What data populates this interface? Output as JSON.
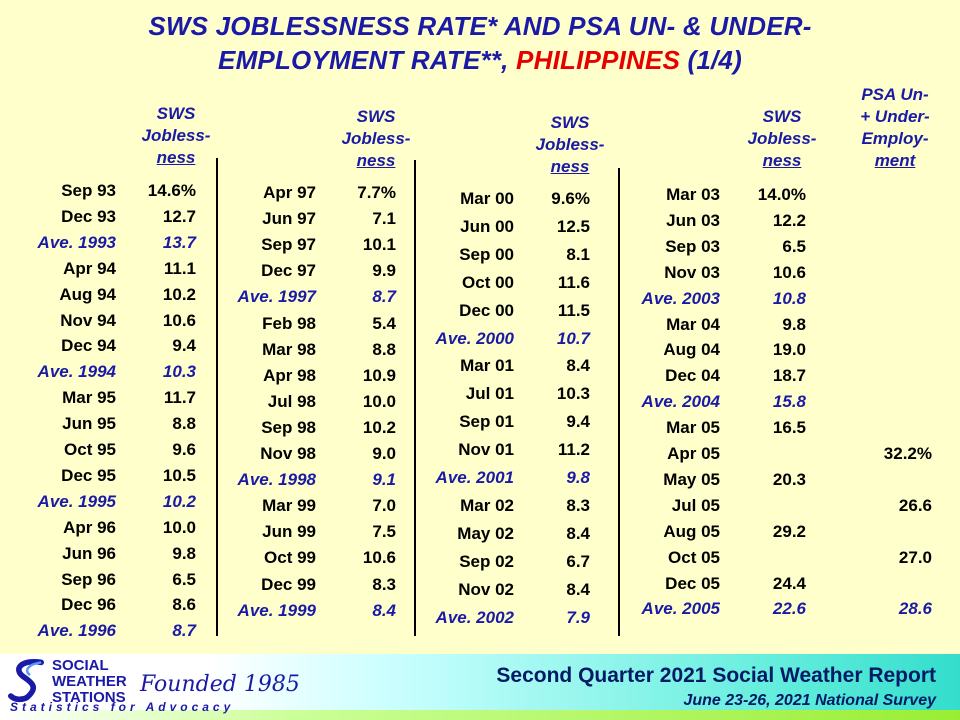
{
  "title": {
    "line1": "SWS JOBLESSNESS RATE* AND PSA UN- & UNDER-",
    "line2_prefix": "EMPLOYMENT RATE**, ",
    "line2_red": "PHILIPPINES",
    "line2_suffix": " (1/4)"
  },
  "headers": {
    "sws_1": "SWS",
    "sws_2": "Jobless-",
    "sws_3": "ness",
    "psa_1": "PSA Un-",
    "psa_2": "+ Under-",
    "psa_3": "Employ-",
    "psa_4": "ment"
  },
  "columns": [
    {
      "rows": [
        {
          "label": "Sep 93",
          "value": "14.6%",
          "ave": false
        },
        {
          "label": "Dec 93",
          "value": "12.7",
          "ave": false
        },
        {
          "label": "Ave. 1993",
          "value": "13.7",
          "ave": true
        },
        {
          "label": "Apr 94",
          "value": "11.1",
          "ave": false
        },
        {
          "label": "Aug 94",
          "value": "10.2",
          "ave": false
        },
        {
          "label": "Nov 94",
          "value": "10.6",
          "ave": false
        },
        {
          "label": "Dec 94",
          "value": "9.4",
          "ave": false
        },
        {
          "label": "Ave. 1994",
          "value": "10.3",
          "ave": true
        },
        {
          "label": "Mar 95",
          "value": "11.7",
          "ave": false
        },
        {
          "label": "Jun 95",
          "value": "8.8",
          "ave": false
        },
        {
          "label": "Oct 95",
          "value": "9.6",
          "ave": false
        },
        {
          "label": "Dec 95",
          "value": "10.5",
          "ave": false
        },
        {
          "label": "Ave. 1995",
          "value": "10.2",
          "ave": true
        },
        {
          "label": "Apr 96",
          "value": "10.0",
          "ave": false
        },
        {
          "label": "Jun 96",
          "value": "9.8",
          "ave": false
        },
        {
          "label": "Sep 96",
          "value": "6.5",
          "ave": false
        },
        {
          "label": "Dec 96",
          "value": "8.6",
          "ave": false
        },
        {
          "label": "Ave. 1996",
          "value": "8.7",
          "ave": true
        }
      ]
    },
    {
      "rows": [
        {
          "label": "Apr 97",
          "value": "7.7%",
          "ave": false
        },
        {
          "label": "Jun 97",
          "value": "7.1",
          "ave": false
        },
        {
          "label": "Sep 97",
          "value": "10.1",
          "ave": false
        },
        {
          "label": "Dec 97",
          "value": "9.9",
          "ave": false
        },
        {
          "label": "Ave. 1997",
          "value": "8.7",
          "ave": true
        },
        {
          "label": "Feb 98",
          "value": "5.4",
          "ave": false
        },
        {
          "label": "Mar 98",
          "value": "8.8",
          "ave": false
        },
        {
          "label": "Apr 98",
          "value": "10.9",
          "ave": false
        },
        {
          "label": "Jul 98",
          "value": "10.0",
          "ave": false
        },
        {
          "label": "Sep 98",
          "value": "10.2",
          "ave": false
        },
        {
          "label": "Nov 98",
          "value": "9.0",
          "ave": false
        },
        {
          "label": "Ave. 1998",
          "value": "9.1",
          "ave": true
        },
        {
          "label": "Mar 99",
          "value": "7.0",
          "ave": false
        },
        {
          "label": "Jun 99",
          "value": "7.5",
          "ave": false
        },
        {
          "label": "Oct 99",
          "value": "10.6",
          "ave": false
        },
        {
          "label": "Dec 99",
          "value": "8.3",
          "ave": false
        },
        {
          "label": "Ave. 1999",
          "value": "8.4",
          "ave": true
        }
      ]
    },
    {
      "rows": [
        {
          "label": "Mar 00",
          "value": "9.6%",
          "ave": false
        },
        {
          "label": "Jun 00",
          "value": "12.5",
          "ave": false
        },
        {
          "label": "Sep 00",
          "value": "8.1",
          "ave": false
        },
        {
          "label": "Oct 00",
          "value": "11.6",
          "ave": false
        },
        {
          "label": "Dec 00",
          "value": "11.5",
          "ave": false
        },
        {
          "label": "Ave. 2000",
          "value": "10.7",
          "ave": true
        },
        {
          "label": "Mar 01",
          "value": "8.4",
          "ave": false
        },
        {
          "label": "Jul 01",
          "value": "10.3",
          "ave": false
        },
        {
          "label": "Sep 01",
          "value": "9.4",
          "ave": false
        },
        {
          "label": "Nov 01",
          "value": "11.2",
          "ave": false
        },
        {
          "label": "Ave. 2001",
          "value": "9.8",
          "ave": true
        },
        {
          "label": "Mar 02",
          "value": "8.3",
          "ave": false
        },
        {
          "label": "May 02",
          "value": "8.4",
          "ave": false
        },
        {
          "label": "Sep 02",
          "value": "6.7",
          "ave": false
        },
        {
          "label": "Nov 02",
          "value": "8.4",
          "ave": false
        },
        {
          "label": "Ave. 2002",
          "value": "7.9",
          "ave": true
        }
      ]
    },
    {
      "rows": [
        {
          "label": "Mar 03",
          "value": "14.0%",
          "psa": "",
          "ave": false
        },
        {
          "label": "Jun 03",
          "value": "12.2",
          "psa": "",
          "ave": false
        },
        {
          "label": "Sep 03",
          "value": "6.5",
          "psa": "",
          "ave": false
        },
        {
          "label": "Nov 03",
          "value": "10.6",
          "psa": "",
          "ave": false
        },
        {
          "label": "Ave. 2003",
          "value": "10.8",
          "psa": "",
          "ave": true
        },
        {
          "label": "Mar 04",
          "value": "9.8",
          "psa": "",
          "ave": false
        },
        {
          "label": "Aug 04",
          "value": "19.0",
          "psa": "",
          "ave": false
        },
        {
          "label": "Dec 04",
          "value": "18.7",
          "psa": "",
          "ave": false
        },
        {
          "label": "Ave. 2004",
          "value": "15.8",
          "psa": "",
          "ave": true
        },
        {
          "label": "Mar 05",
          "value": "16.5",
          "psa": "",
          "ave": false
        },
        {
          "label": "Apr 05",
          "value": "",
          "psa": "32.2%",
          "ave": false
        },
        {
          "label": "May 05",
          "value": "20.3",
          "psa": "",
          "ave": false
        },
        {
          "label": "Jul 05",
          "value": "",
          "psa": "26.6",
          "ave": false
        },
        {
          "label": "Aug 05",
          "value": "29.2",
          "psa": "",
          "ave": false
        },
        {
          "label": "Oct 05",
          "value": "",
          "psa": "27.0",
          "ave": false
        },
        {
          "label": "Dec 05",
          "value": "24.4",
          "psa": "",
          "ave": false
        },
        {
          "label": "Ave. 2005",
          "value": "22.6",
          "psa": "28.6",
          "ave": true
        }
      ]
    }
  ],
  "footer": {
    "org_line1": "SOCIAL",
    "org_line2": "WEATHER",
    "org_line3": "STATIONS",
    "founded": "Founded 1985",
    "tagline": "Statistics for Advocacy",
    "report": "Second Quarter 2021 Social Weather Report",
    "survey": "June 23-26, 2021 National Survey"
  },
  "colors": {
    "blue": "#1a1aa6",
    "red": "#e60000",
    "background": "#ffffcc"
  }
}
